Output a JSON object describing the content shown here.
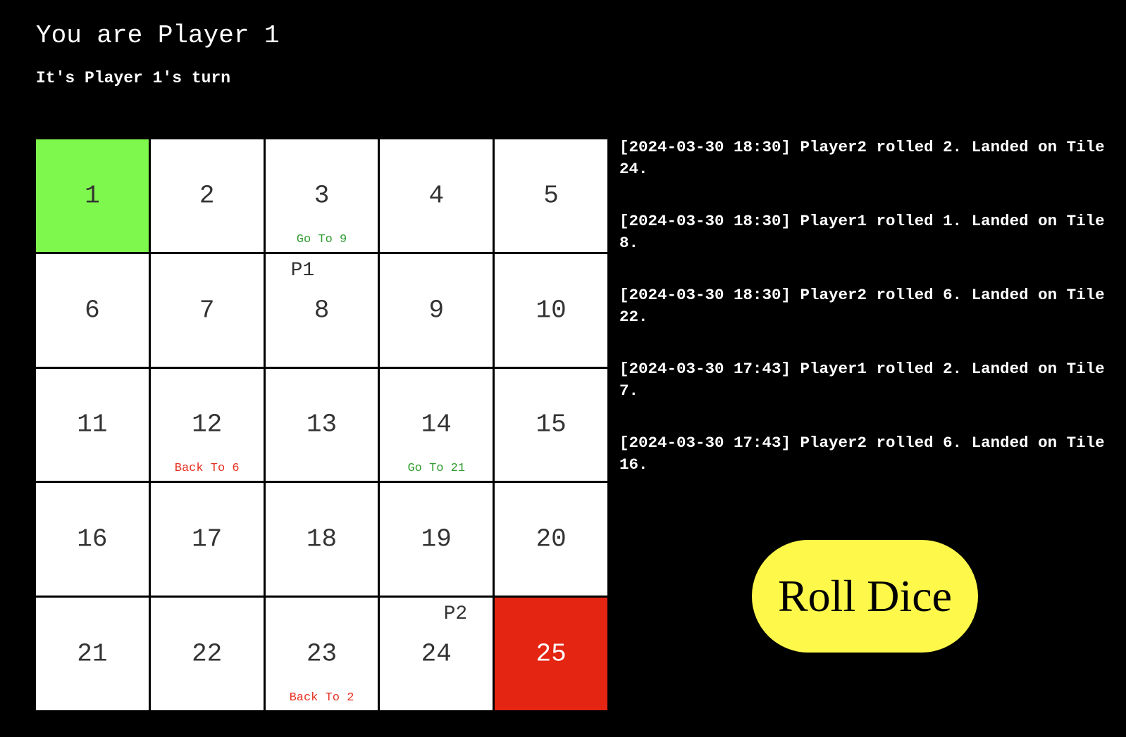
{
  "header": {
    "title": "You are Player 1",
    "turn_status": "It's Player 1's turn"
  },
  "board": {
    "tiles": [
      {
        "number": "1",
        "note": "",
        "note_type": "",
        "token": ""
      },
      {
        "number": "2",
        "note": "",
        "note_type": "",
        "token": ""
      },
      {
        "number": "3",
        "note": "Go To 9",
        "note_type": "up",
        "token": ""
      },
      {
        "number": "4",
        "note": "",
        "note_type": "",
        "token": ""
      },
      {
        "number": "5",
        "note": "",
        "note_type": "",
        "token": ""
      },
      {
        "number": "6",
        "note": "",
        "note_type": "",
        "token": ""
      },
      {
        "number": "7",
        "note": "",
        "note_type": "",
        "token": ""
      },
      {
        "number": "8",
        "note": "",
        "note_type": "",
        "token": "P1"
      },
      {
        "number": "9",
        "note": "",
        "note_type": "",
        "token": ""
      },
      {
        "number": "10",
        "note": "",
        "note_type": "",
        "token": ""
      },
      {
        "number": "11",
        "note": "",
        "note_type": "",
        "token": ""
      },
      {
        "number": "12",
        "note": "Back To 6",
        "note_type": "down",
        "token": ""
      },
      {
        "number": "13",
        "note": "",
        "note_type": "",
        "token": ""
      },
      {
        "number": "14",
        "note": "Go To 21",
        "note_type": "up",
        "token": ""
      },
      {
        "number": "15",
        "note": "",
        "note_type": "",
        "token": ""
      },
      {
        "number": "16",
        "note": "",
        "note_type": "",
        "token": ""
      },
      {
        "number": "17",
        "note": "",
        "note_type": "",
        "token": ""
      },
      {
        "number": "18",
        "note": "",
        "note_type": "",
        "token": ""
      },
      {
        "number": "19",
        "note": "",
        "note_type": "",
        "token": ""
      },
      {
        "number": "20",
        "note": "",
        "note_type": "",
        "token": ""
      },
      {
        "number": "21",
        "note": "",
        "note_type": "",
        "token": ""
      },
      {
        "number": "22",
        "note": "",
        "note_type": "",
        "token": ""
      },
      {
        "number": "23",
        "note": "Back To 2",
        "note_type": "down",
        "token": ""
      },
      {
        "number": "24",
        "note": "",
        "note_type": "",
        "token": "P2"
      },
      {
        "number": "25",
        "note": "",
        "note_type": "",
        "token": ""
      }
    ],
    "colors": {
      "start_tile": "#7ff84d",
      "finish_tile": "#e32512",
      "ladder_note": "#2e9b2e",
      "snake_note": "#e53020"
    }
  },
  "log": {
    "entries": [
      "[2024-03-30 18:30] Player2 rolled 2. Landed on Tile 24.",
      "[2024-03-30 18:30] Player1 rolled 1. Landed on Tile 8.",
      "[2024-03-30 18:30] Player2 rolled 6. Landed on Tile 22.",
      "[2024-03-30 17:43] Player1 rolled 2. Landed on Tile 7.",
      "[2024-03-30 17:43] Player2 rolled 6. Landed on Tile 16."
    ]
  },
  "controls": {
    "roll_label": "Roll Dice",
    "roll_color": "#fdf84a"
  }
}
